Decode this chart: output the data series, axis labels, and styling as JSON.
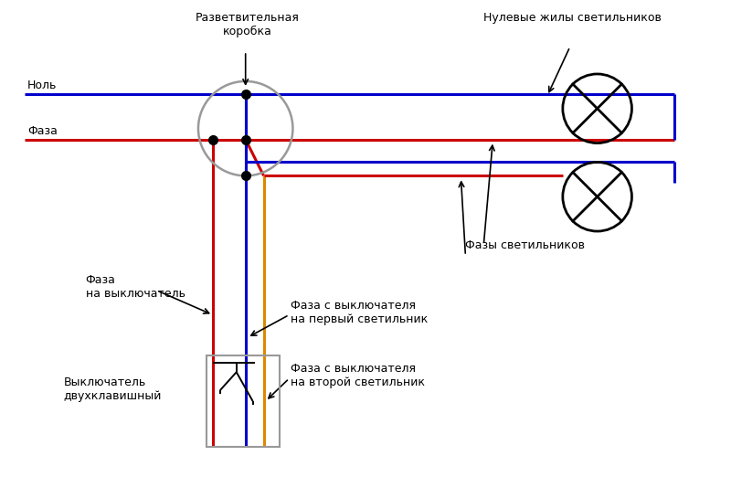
{
  "bg_color": "#ffffff",
  "fig_w": 8.0,
  "fig_h": 5.22,
  "dpi": 100,
  "blue": "#0000cc",
  "red": "#cc0000",
  "orange": "#dd8800",
  "black": "#000000",
  "gray": "#999999",
  "lw": 2.2,
  "lw_thin": 1.4,
  "fs": 9.0,
  "labels": {
    "nol": "Ноль",
    "faza": "Фаза",
    "razv": "Разветвительная\nкоробка",
    "nulevye": "Нулевые жилы светильников",
    "faza_vykl": "Фаза\nна выключатель",
    "vykl": "Выключатель\nдвухклавишный",
    "faza1": "Фаза с выключателя\nна первый светильник",
    "faza2": "Фаза с выключателя\nна второй светильник",
    "fazy": "Фазы светильников"
  }
}
